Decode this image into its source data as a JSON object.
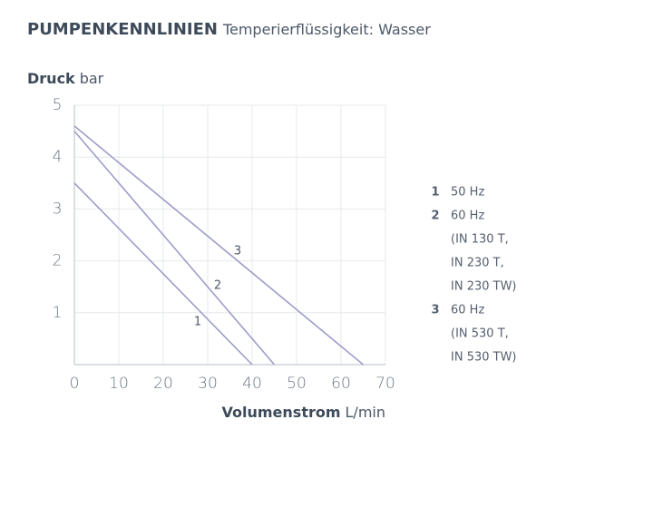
{
  "chart_data": {
    "type": "line",
    "title": "PUMPENKENNLINIEN",
    "subtitle": "Temperierflüssigkeit: Wasser",
    "y_label": "Druck",
    "y_unit": "bar",
    "x_label": "Volumenstrom",
    "x_unit": "L/min",
    "xlim": [
      0,
      70
    ],
    "xticks": [
      0,
      10,
      20,
      30,
      40,
      50,
      60,
      70
    ],
    "ylim": [
      0,
      5
    ],
    "yticks": [
      1,
      2,
      3,
      4,
      5
    ],
    "grid": true,
    "series": [
      {
        "name": "1",
        "color": "#9d9cc9",
        "x": [
          0,
          40
        ],
        "values": [
          3.5,
          0
        ],
        "description": [
          "50 Hz"
        ]
      },
      {
        "name": "2",
        "color": "#9d9cc9",
        "x": [
          0,
          45
        ],
        "values": [
          4.5,
          0
        ],
        "description": [
          "60 Hz",
          "(IN 130 T,",
          "IN 230 T,",
          "IN 230 TW)"
        ]
      },
      {
        "name": "3",
        "color": "#9d9cc9",
        "x": [
          0,
          65
        ],
        "values": [
          4.6,
          0
        ],
        "description": [
          "60 Hz",
          "(IN 530 T,",
          "IN 530 TW)"
        ]
      }
    ]
  }
}
